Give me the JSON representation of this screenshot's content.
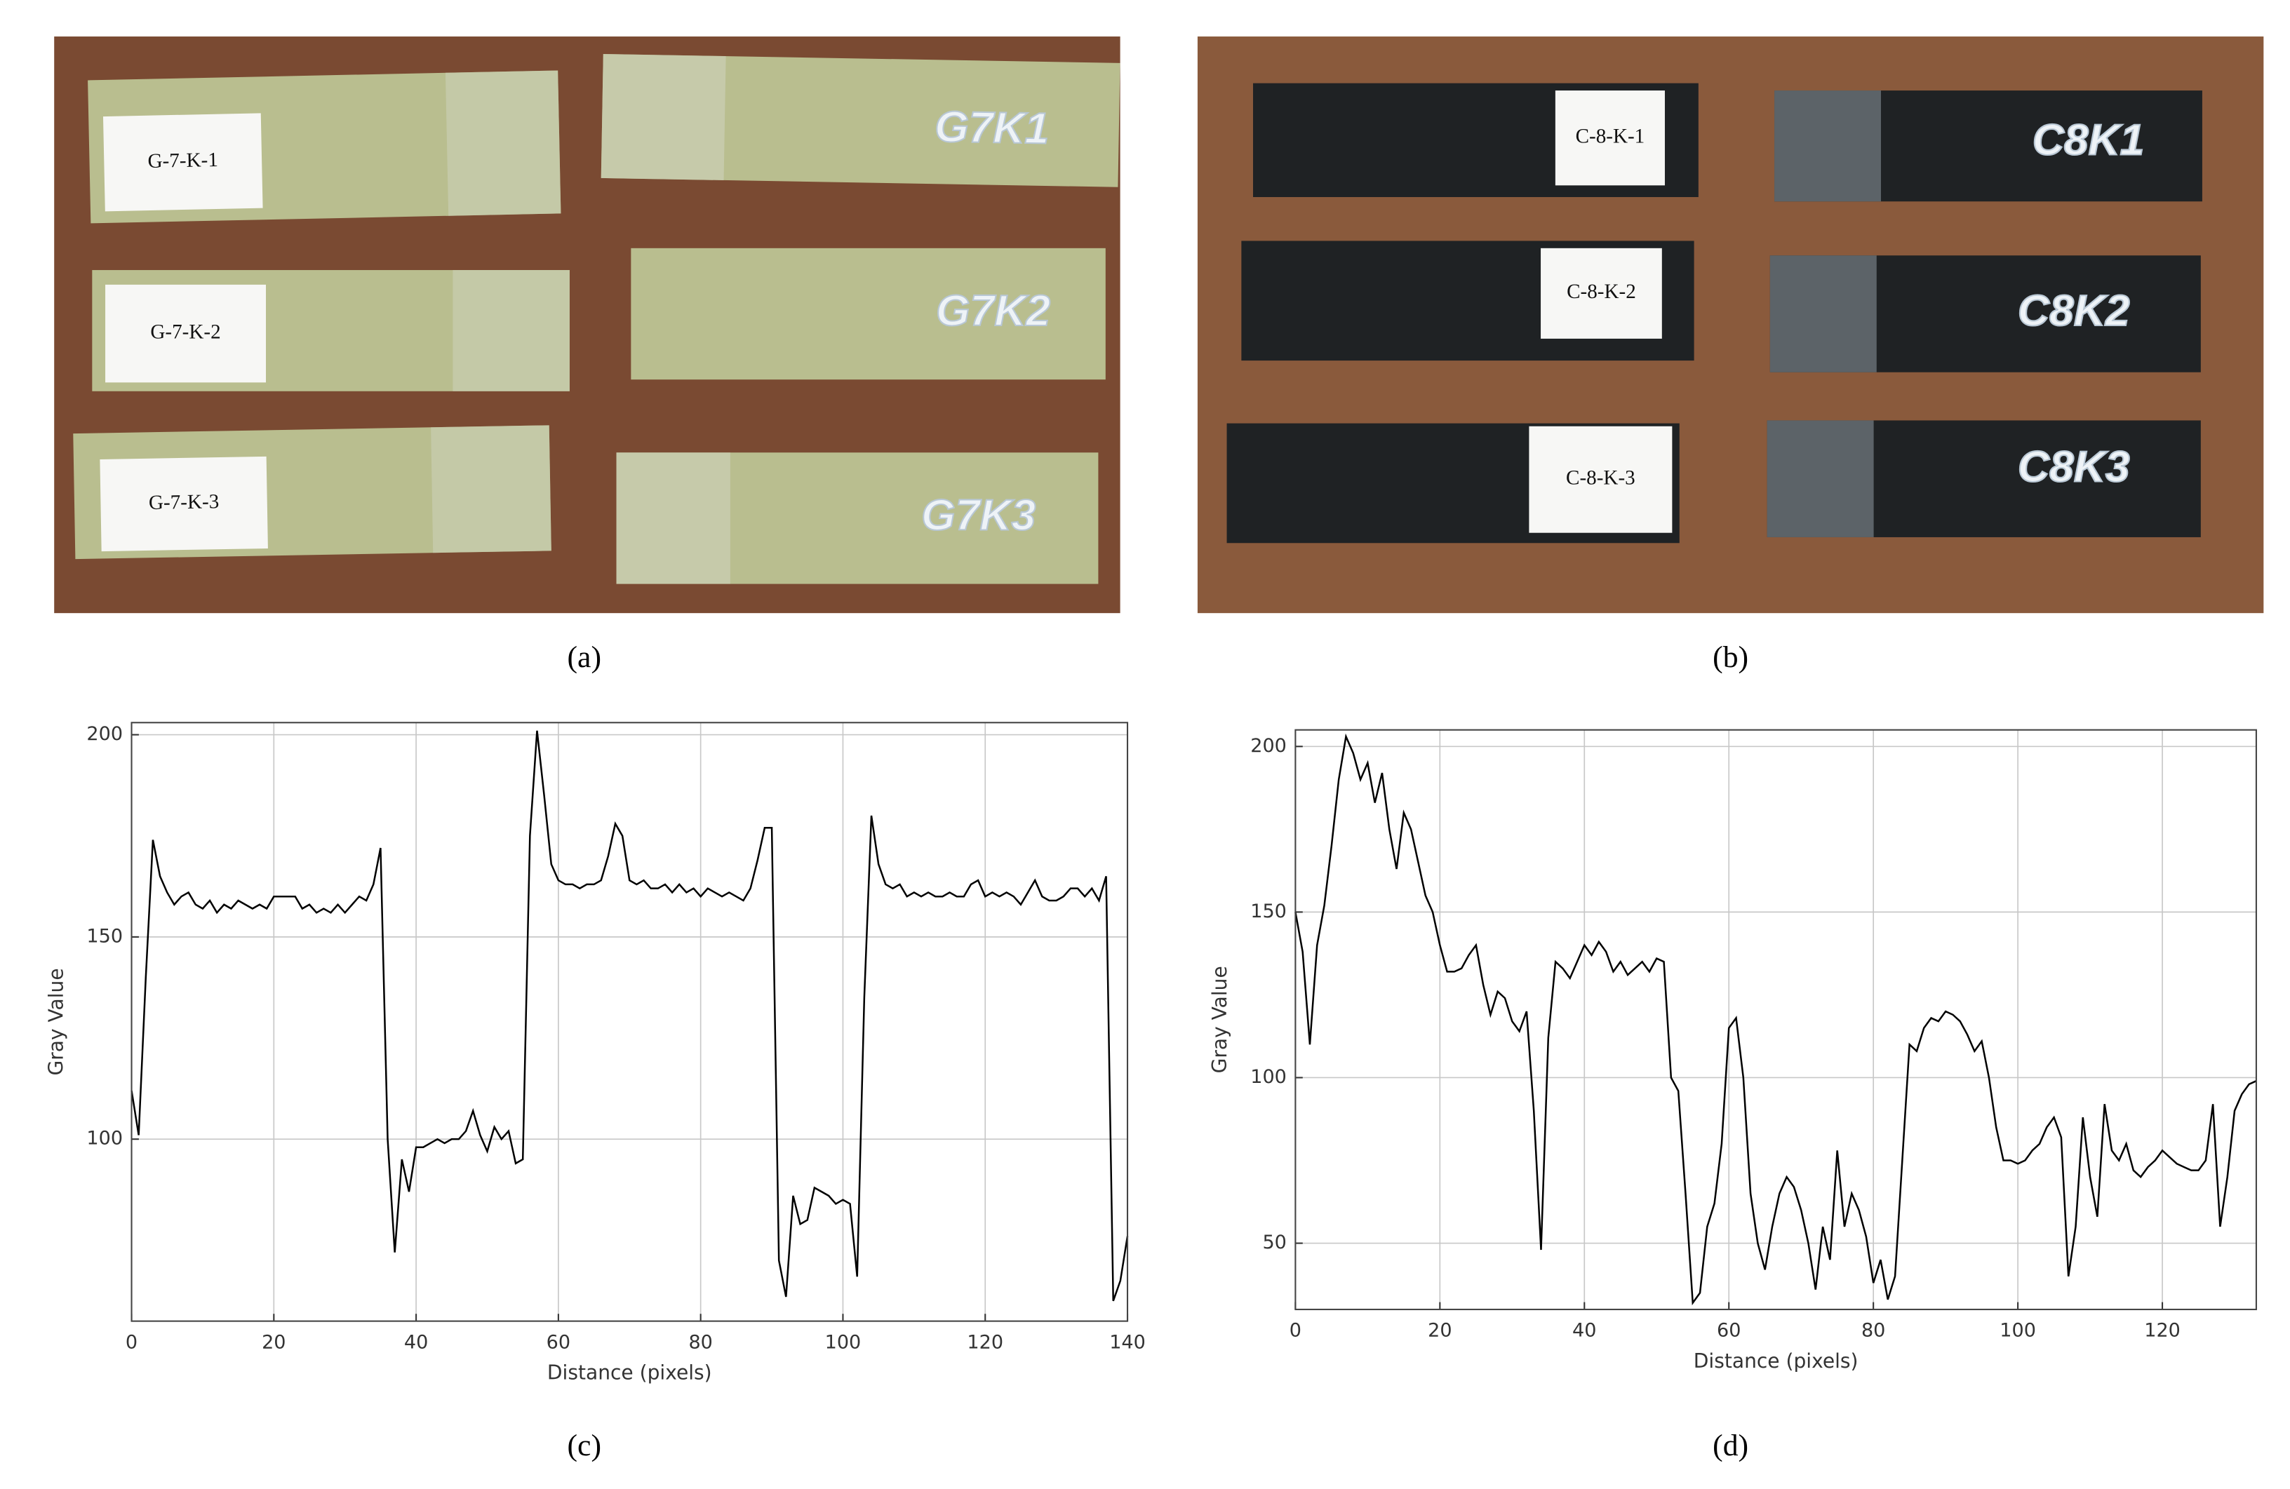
{
  "photos": [
    {
      "caption": "(a)",
      "labels": [
        "G-7-K-1",
        "G-7-K-2",
        "G-7-K-3"
      ],
      "marks": [
        "G7K1",
        "G7K2",
        "G7K3"
      ]
    },
    {
      "caption": "(b)",
      "labels": [
        "C-8-K-1",
        "C-8-K-2",
        "C-8-K-3"
      ],
      "marks": [
        "C8K1",
        "C8K2",
        "C8K3"
      ]
    }
  ],
  "chart_data": [
    {
      "type": "line",
      "caption": "(c)",
      "xlabel": "Distance (pixels)",
      "ylabel": "Gray Value",
      "color": "#000000",
      "grid": true,
      "xlim": [
        0,
        140
      ],
      "ylim": [
        55,
        203
      ],
      "xticks": [
        0,
        20,
        40,
        60,
        80,
        100,
        120,
        140
      ],
      "yticks": [
        100,
        150,
        200
      ],
      "x": [
        0,
        1,
        2,
        3,
        4,
        5,
        6,
        7,
        8,
        9,
        10,
        11,
        12,
        13,
        14,
        15,
        16,
        17,
        18,
        19,
        20,
        21,
        22,
        23,
        24,
        25,
        26,
        27,
        28,
        29,
        30,
        31,
        32,
        33,
        34,
        35,
        36,
        37,
        38,
        39,
        40,
        41,
        42,
        43,
        44,
        45,
        46,
        47,
        48,
        49,
        50,
        51,
        52,
        53,
        54,
        55,
        56,
        57,
        58,
        59,
        60,
        61,
        62,
        63,
        64,
        65,
        66,
        67,
        68,
        69,
        70,
        71,
        72,
        73,
        74,
        75,
        76,
        77,
        78,
        79,
        80,
        81,
        82,
        83,
        84,
        85,
        86,
        87,
        88,
        89,
        90,
        91,
        92,
        93,
        94,
        95,
        96,
        97,
        98,
        99,
        100,
        101,
        102,
        103,
        104,
        105,
        106,
        107,
        108,
        109,
        110,
        111,
        112,
        113,
        114,
        115,
        116,
        117,
        118,
        119,
        120,
        121,
        122,
        123,
        124,
        125,
        126,
        127,
        128,
        129,
        130,
        131,
        132,
        133,
        134,
        135,
        136,
        137,
        138,
        139,
        140
      ],
      "values": [
        112,
        101,
        140,
        174,
        165,
        161,
        158,
        160,
        161,
        158,
        157,
        159,
        156,
        158,
        157,
        159,
        158,
        157,
        158,
        157,
        160,
        160,
        160,
        160,
        157,
        158,
        156,
        157,
        156,
        158,
        156,
        158,
        160,
        159,
        163,
        172,
        100,
        72,
        95,
        87,
        98,
        98,
        99,
        100,
        99,
        100,
        100,
        102,
        107,
        101,
        97,
        103,
        100,
        102,
        94,
        95,
        175,
        201,
        185,
        168,
        164,
        163,
        163,
        162,
        163,
        163,
        164,
        170,
        178,
        175,
        164,
        163,
        164,
        162,
        162,
        163,
        161,
        163,
        161,
        162,
        160,
        162,
        161,
        160,
        161,
        160,
        159,
        162,
        169,
        177,
        177,
        70,
        61,
        86,
        79,
        80,
        88,
        87,
        86,
        84,
        85,
        84,
        66,
        135,
        180,
        168,
        163,
        162,
        163,
        160,
        161,
        160,
        161,
        160,
        160,
        161,
        160,
        160,
        163,
        164,
        160,
        161,
        160,
        161,
        160,
        158,
        161,
        164,
        160,
        159,
        159,
        160,
        162,
        162,
        160,
        162,
        159,
        165,
        60,
        65,
        76
      ]
    },
    {
      "type": "line",
      "caption": "(d)",
      "xlabel": "Distance (pixels)",
      "ylabel": "Gray Value",
      "color": "#000000",
      "grid": true,
      "xlim": [
        0,
        133
      ],
      "ylim": [
        30,
        205
      ],
      "xticks": [
        0,
        20,
        40,
        60,
        80,
        100,
        120
      ],
      "yticks": [
        50,
        100,
        150,
        200
      ],
      "x": [
        0,
        1,
        2,
        3,
        4,
        5,
        6,
        7,
        8,
        9,
        10,
        11,
        12,
        13,
        14,
        15,
        16,
        17,
        18,
        19,
        20,
        21,
        22,
        23,
        24,
        25,
        26,
        27,
        28,
        29,
        30,
        31,
        32,
        33,
        34,
        35,
        36,
        37,
        38,
        39,
        40,
        41,
        42,
        43,
        44,
        45,
        46,
        47,
        48,
        49,
        50,
        51,
        52,
        53,
        54,
        55,
        56,
        57,
        58,
        59,
        60,
        61,
        62,
        63,
        64,
        65,
        66,
        67,
        68,
        69,
        70,
        71,
        72,
        73,
        74,
        75,
        76,
        77,
        78,
        79,
        80,
        81,
        82,
        83,
        84,
        85,
        86,
        87,
        88,
        89,
        90,
        91,
        92,
        93,
        94,
        95,
        96,
        97,
        98,
        99,
        100,
        101,
        102,
        103,
        104,
        105,
        106,
        107,
        108,
        109,
        110,
        111,
        112,
        113,
        114,
        115,
        116,
        117,
        118,
        119,
        120,
        121,
        122,
        123,
        124,
        125,
        126,
        127,
        128,
        129,
        130,
        131,
        132,
        133
      ],
      "values": [
        150,
        138,
        110,
        140,
        152,
        170,
        190,
        203,
        198,
        190,
        195,
        183,
        192,
        175,
        163,
        180,
        175,
        165,
        155,
        150,
        140,
        132,
        132,
        133,
        137,
        140,
        128,
        119,
        126,
        124,
        117,
        114,
        120,
        90,
        48,
        112,
        135,
        133,
        130,
        135,
        140,
        137,
        141,
        138,
        132,
        135,
        131,
        133,
        135,
        132,
        136,
        135,
        100,
        96,
        65,
        32,
        35,
        55,
        62,
        80,
        115,
        118,
        100,
        65,
        50,
        42,
        55,
        65,
        70,
        67,
        60,
        50,
        36,
        55,
        45,
        78,
        55,
        65,
        60,
        52,
        38,
        45,
        33,
        40,
        75,
        110,
        108,
        115,
        118,
        117,
        120,
        119,
        117,
        113,
        108,
        111,
        100,
        85,
        75,
        75,
        74,
        75,
        78,
        80,
        85,
        88,
        82,
        40,
        55,
        88,
        70,
        58,
        92,
        78,
        75,
        80,
        72,
        70,
        73,
        75,
        78,
        76,
        74,
        73,
        72,
        72,
        75,
        92,
        55,
        70,
        90,
        95,
        98,
        99
      ]
    }
  ]
}
